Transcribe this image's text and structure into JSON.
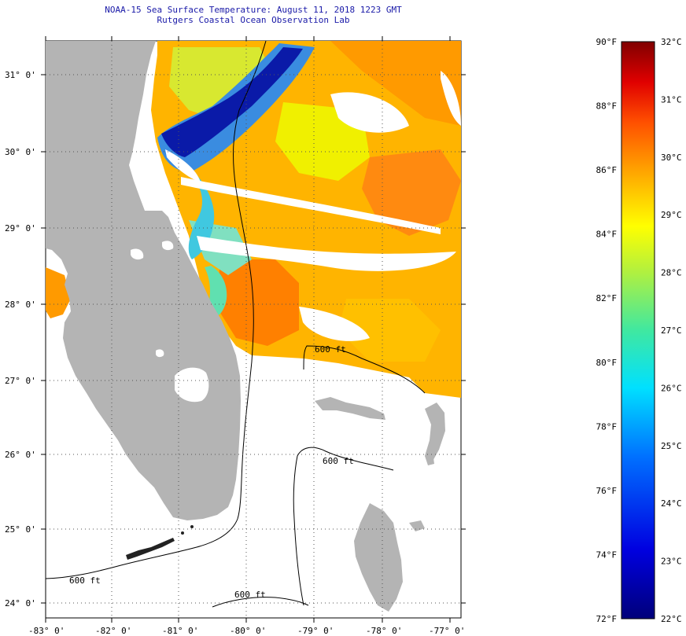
{
  "header": {
    "title": "NOAA-15 Sea Surface Temperature:  August 11, 2018 1223 GMT",
    "subtitle": "Rutgers Coastal Ocean Observation Lab"
  },
  "map": {
    "lat_labels": [
      "31° 0'",
      "30° 0'",
      "29° 0'",
      "28° 0'",
      "27° 0'",
      "26° 0'",
      "25° 0'",
      "24° 0'"
    ],
    "lon_labels": [
      "-83° 0'",
      "-82° 0'",
      "-81° 0'",
      "-80° 0'",
      "-79° 0'",
      "-78° 0'",
      "-77° 0'"
    ],
    "contour_labels": [
      "600 ft",
      "600 ft",
      "600 ft",
      "600 ft"
    ]
  },
  "colorbar": {
    "f_labels": [
      "90°F",
      "88°F",
      "86°F",
      "84°F",
      "82°F",
      "80°F",
      "78°F",
      "76°F",
      "74°F",
      "72°F"
    ],
    "c_labels": [
      "32°C",
      "31°C",
      "30°C",
      "29°C",
      "28°C",
      "27°C",
      "26°C",
      "25°C",
      "24°C",
      "23°C",
      "22°C"
    ],
    "f_range": [
      72,
      90
    ],
    "c_range": [
      22,
      32
    ]
  },
  "colors": {
    "land": "#b4b4b4",
    "title": "#1a1aa8"
  }
}
